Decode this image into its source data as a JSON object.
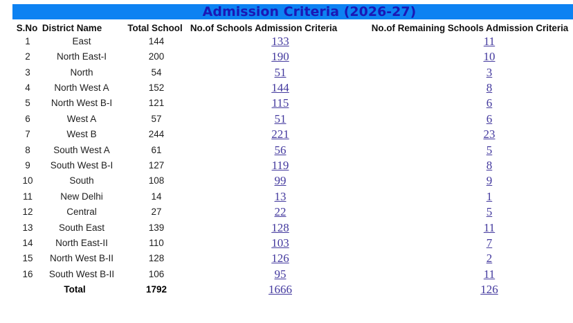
{
  "title": "Admission Criteria (2026-27)",
  "columns": [
    "S.No",
    "District Name",
    "Total School",
    "No.of Schools Admission Criteria",
    "No.of Remaining Schools Admission Criteria"
  ],
  "rows": [
    {
      "sno": "1",
      "district": "East",
      "total_school": "144",
      "schools_admission_criteria": "133",
      "remaining_schools_criteria": "11"
    },
    {
      "sno": "2",
      "district": "North East-I",
      "total_school": "200",
      "schools_admission_criteria": "190",
      "remaining_schools_criteria": "10"
    },
    {
      "sno": "3",
      "district": "North",
      "total_school": "54",
      "schools_admission_criteria": "51",
      "remaining_schools_criteria": "3"
    },
    {
      "sno": "4",
      "district": "North West A",
      "total_school": "152",
      "schools_admission_criteria": "144",
      "remaining_schools_criteria": "8"
    },
    {
      "sno": "5",
      "district": "North West B-I",
      "total_school": "121",
      "schools_admission_criteria": "115",
      "remaining_schools_criteria": "6"
    },
    {
      "sno": "6",
      "district": "West A",
      "total_school": "57",
      "schools_admission_criteria": "51",
      "remaining_schools_criteria": "6"
    },
    {
      "sno": "7",
      "district": "West B",
      "total_school": "244",
      "schools_admission_criteria": "221",
      "remaining_schools_criteria": "23"
    },
    {
      "sno": "8",
      "district": "South West A",
      "total_school": "61",
      "schools_admission_criteria": "56",
      "remaining_schools_criteria": "5"
    },
    {
      "sno": "9",
      "district": "South West B-I",
      "total_school": "127",
      "schools_admission_criteria": "119",
      "remaining_schools_criteria": "8"
    },
    {
      "sno": "10",
      "district": "South",
      "total_school": "108",
      "schools_admission_criteria": "99",
      "remaining_schools_criteria": "9"
    },
    {
      "sno": "11",
      "district": "New Delhi",
      "total_school": "14",
      "schools_admission_criteria": "13",
      "remaining_schools_criteria": "1"
    },
    {
      "sno": "12",
      "district": "Central",
      "total_school": "27",
      "schools_admission_criteria": "22",
      "remaining_schools_criteria": "5"
    },
    {
      "sno": "13",
      "district": "South East",
      "total_school": "139",
      "schools_admission_criteria": "128",
      "remaining_schools_criteria": "11"
    },
    {
      "sno": "14",
      "district": "North East-II",
      "total_school": "110",
      "schools_admission_criteria": "103",
      "remaining_schools_criteria": "7"
    },
    {
      "sno": "15",
      "district": "North West B-II",
      "total_school": "128",
      "schools_admission_criteria": "126",
      "remaining_schools_criteria": "2"
    },
    {
      "sno": "16",
      "district": "South West B-II",
      "total_school": "106",
      "schools_admission_criteria": "95",
      "remaining_schools_criteria": "11"
    }
  ],
  "total_row": {
    "label": "Total",
    "total_school": "1792",
    "schools_admission_criteria": "1666",
    "remaining_schools_criteria": "126"
  },
  "colors": {
    "title_bar_bg": "#0D82F2",
    "title_text": "#1A18B5",
    "link": "#43399E",
    "header_text": "#111111",
    "body_text": "#1E1E1E"
  }
}
